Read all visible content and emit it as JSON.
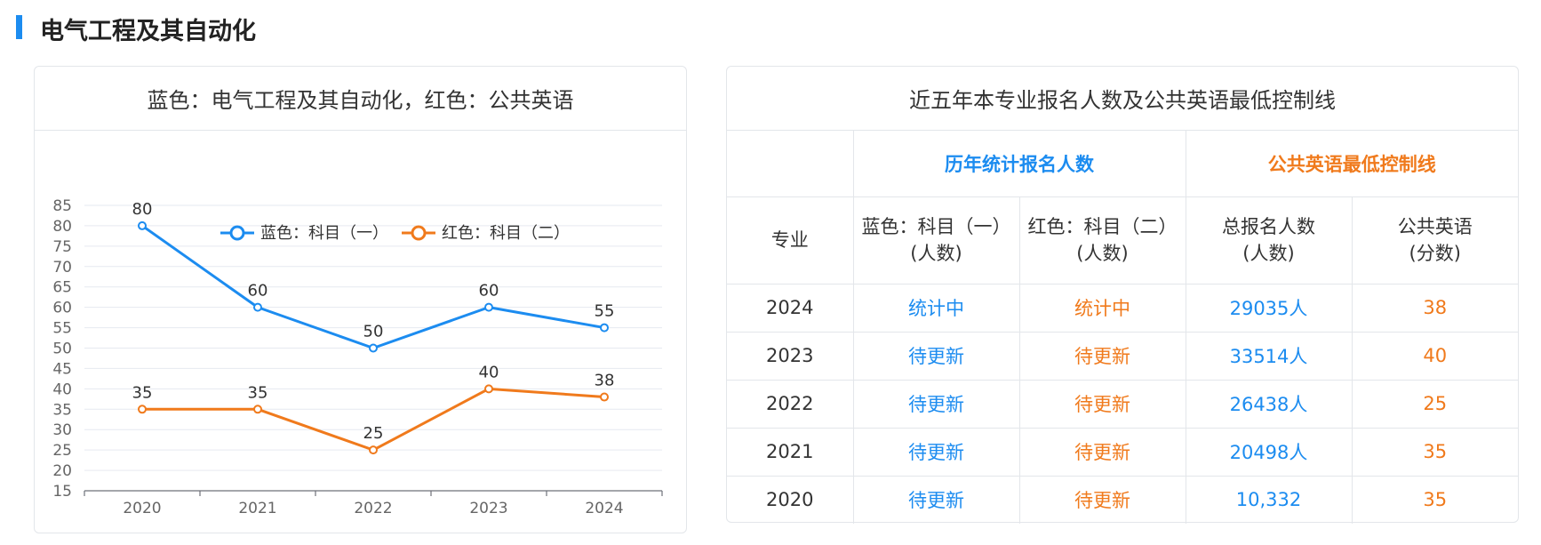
{
  "section": {
    "title": "电气工程及其自动化"
  },
  "chart_panel": {
    "title": "蓝色：电气工程及其自动化，红色：公共英语"
  },
  "table_panel": {
    "title": "近五年本专业报名人数及公共英语最低控制线"
  },
  "colors": {
    "blue": "#1c8cf0",
    "orange": "#f07a1c",
    "accent_bar": "#1c8cf0",
    "grid": "#e6e9f0"
  },
  "chart_data": {
    "type": "line",
    "categories": [
      "2020",
      "2021",
      "2022",
      "2023",
      "2024"
    ],
    "series": [
      {
        "name": "蓝色：科目（一）",
        "color": "#1c8cf0",
        "values": [
          80,
          60,
          50,
          60,
          55
        ]
      },
      {
        "name": "红色：科目（二）",
        "color": "#f07a1c",
        "values": [
          35,
          35,
          25,
          40,
          38
        ]
      }
    ],
    "ylim": [
      15,
      85
    ],
    "yticks": [
      15,
      20,
      25,
      30,
      35,
      40,
      45,
      50,
      55,
      60,
      65,
      70,
      75,
      80,
      85
    ],
    "grid": true,
    "legend_position": "top-center",
    "data_labels": true
  },
  "table": {
    "group_headers": [
      "历年统计报名人数",
      "公共英语最低控制线"
    ],
    "columns": [
      [
        "专业"
      ],
      [
        "蓝色：科目（一）",
        "(人数)"
      ],
      [
        "红色：科目（二）",
        "(人数)"
      ],
      [
        "总报名人数",
        "(人数)"
      ],
      [
        "公共英语",
        "(分数)"
      ]
    ],
    "rows": [
      [
        "2024",
        "统计中",
        "统计中",
        "29035人",
        "38"
      ],
      [
        "2023",
        "待更新",
        "待更新",
        "33514人",
        "40"
      ],
      [
        "2022",
        "待更新",
        "待更新",
        "26438人",
        "25"
      ],
      [
        "2021",
        "待更新",
        "待更新",
        "20498人",
        "35"
      ],
      [
        "2020",
        "待更新",
        "待更新",
        "10,332",
        "35"
      ]
    ]
  }
}
